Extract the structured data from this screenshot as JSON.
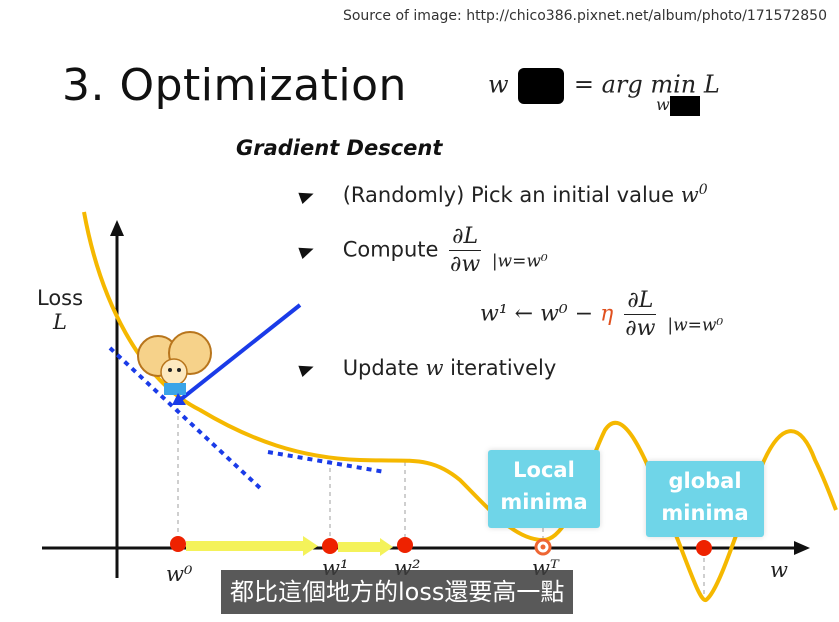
{
  "source_text": "Source of image: http://chico386.pixnet.net/album/photo/171572850",
  "title": "3. Optimization",
  "formula": {
    "lhs": "w",
    "rhs": "= arg min L",
    "sub": "w"
  },
  "heading": "Gradient Descent",
  "bullets": {
    "pick_prefix": "(Randomly) Pick an initial value",
    "pick_var": "w",
    "pick_sup": "0",
    "compute_label": "Compute",
    "dL": "∂L",
    "dw": "∂w",
    "eval": "|w=w⁰",
    "update_text_a": "Update",
    "update_var": "w",
    "update_text_b": "iteratively"
  },
  "update_eq": {
    "lhs": "w¹ ← w⁰ −",
    "eta": "η",
    "dL": "∂L",
    "dw": "∂w",
    "eval": "|w=w⁰"
  },
  "graph": {
    "loss_word": "Loss",
    "loss_var": "L",
    "x_axis_var": "w",
    "point_labels": {
      "w0": "w⁰",
      "w1": "w¹",
      "w2": "w²",
      "wT": "wᵀ"
    },
    "local_minima": "Local minima",
    "global_minima": "global minima"
  },
  "subtitle": "都比這個地方的loss還要高一點",
  "colors": {
    "curve": "#f5b800",
    "tangent": "#1a3be8",
    "point": "#ee2200",
    "arrow": "#f4f25a",
    "badge": "#6fd5e8",
    "eta": "#e0501e"
  }
}
